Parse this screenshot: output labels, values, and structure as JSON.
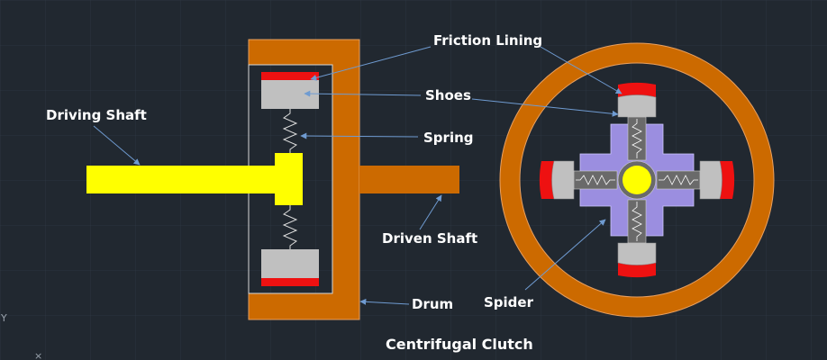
{
  "labels": {
    "friction_lining": "Friction Lining",
    "shoes": "Shoes",
    "spring": "Spring",
    "driving_shaft": "Driving Shaft",
    "driven_shaft": "Driven Shaft",
    "drum": "Drum",
    "spider": "Spider"
  },
  "title": "Centrifugal  Clutch",
  "axis": {
    "y": "Y",
    "x": "×"
  },
  "colors": {
    "background": "#212830",
    "drum": "#cc6a00",
    "driving_shaft": "#ffff00",
    "shoe": "#c0c0c0",
    "lining": "#ee1111",
    "spider": "#9b8ee0",
    "arrow": "#6f9bd1"
  }
}
